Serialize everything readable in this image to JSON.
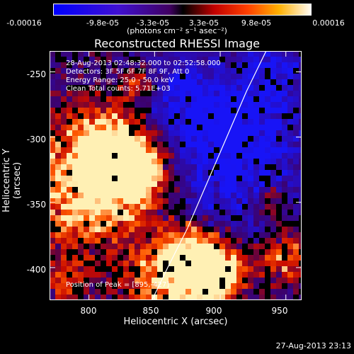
{
  "colorbar": {
    "ticks": [
      "-0.00016",
      "-9.8e-05",
      "-3.3e-05",
      "3.3e-05",
      "9.8e-05",
      "0.00016"
    ],
    "units_label": "(photons cm⁻² s⁻¹ asec⁻²)"
  },
  "chart_data": {
    "type": "heatmap",
    "title": "Reconstructed RHESSI Image",
    "xlabel": "Heliocentric X (arcsec)",
    "ylabel": "Heliocentric Y (arcsec)",
    "xlim": [
      770,
      962
    ],
    "ylim": [
      -425,
      -234
    ],
    "x_ticks": [
      800,
      850,
      900,
      950
    ],
    "y_ticks": [
      -250,
      -300,
      -350,
      -400
    ],
    "info_lines": [
      "28-Aug-2013 02:48:32.000 to 02:52:58.000",
      "Detectors: 3F 5F 6F 7F 8F 9F, Att 0",
      "Energy Range: 25.0 - 50.0 keV",
      "Clean    Total counts: 5.71E+03"
    ],
    "peak_label": "Position of Peak = [895,-427]",
    "limb_curve": [
      [
        848,
        -425
      ],
      [
        860,
        -400
      ],
      [
        875,
        -370
      ],
      [
        890,
        -335
      ],
      [
        905,
        -300
      ],
      [
        920,
        -265
      ],
      [
        935,
        -234
      ]
    ],
    "hot_regions": [
      {
        "x": 790,
        "y": -340,
        "r": 32,
        "level": 0.85
      },
      {
        "x": 815,
        "y": -300,
        "r": 20,
        "level": 0.75
      },
      {
        "x": 825,
        "y": -335,
        "r": 22,
        "level": 0.8
      },
      {
        "x": 845,
        "y": -320,
        "r": 16,
        "level": 0.65
      },
      {
        "x": 868,
        "y": -408,
        "r": 26,
        "level": 1.0
      },
      {
        "x": 882,
        "y": -395,
        "r": 18,
        "level": 0.9
      },
      {
        "x": 900,
        "y": -405,
        "r": 14,
        "level": 0.7
      },
      {
        "x": 840,
        "y": -260,
        "r": 10,
        "level": 0.55
      },
      {
        "x": 783,
        "y": -410,
        "r": 10,
        "level": 0.55
      },
      {
        "x": 950,
        "y": -392,
        "r": 14,
        "level": 0.65
      },
      {
        "x": 938,
        "y": -350,
        "r": 9,
        "level": 0.55
      }
    ],
    "cold_regions": [
      {
        "x": 900,
        "y": -330,
        "r": 40
      },
      {
        "x": 920,
        "y": -295,
        "r": 28
      },
      {
        "x": 870,
        "y": -270,
        "r": 25
      },
      {
        "x": 940,
        "y": -250,
        "r": 18
      }
    ]
  },
  "timestamp": "27-Aug-2013 23:13"
}
